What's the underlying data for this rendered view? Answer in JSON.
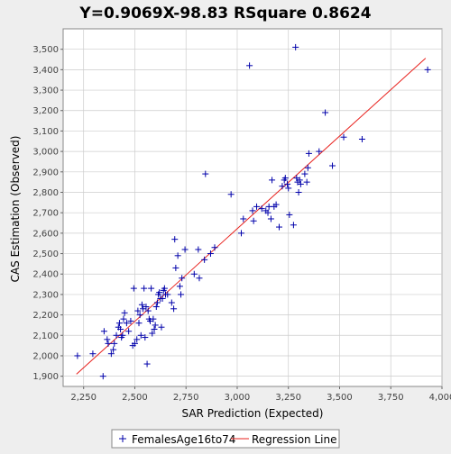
{
  "chart_data": {
    "type": "scatter",
    "title": "Y=0.9069X-98.83    RSquare 0.8624",
    "xlabel": "SAR Prediction (Expected)",
    "ylabel": "CAS Estimation (Observed)",
    "xlim": [
      2150,
      4000
    ],
    "ylim": [
      1850,
      3600
    ],
    "xticks": [
      2250,
      2500,
      2750,
      3000,
      3250,
      3500,
      3750,
      4000
    ],
    "yticks": [
      1900,
      2000,
      2100,
      2200,
      2300,
      2400,
      2500,
      2600,
      2700,
      2800,
      2900,
      3000,
      3100,
      3200,
      3300,
      3400,
      3500
    ],
    "grid": true,
    "legend_position": "bottom",
    "colors": {
      "points": "#0000aa",
      "regression": "#e8201c"
    },
    "series": [
      {
        "name": "FemalesAge16to74",
        "marker": "plus",
        "points": [
          [
            2220,
            2000
          ],
          [
            2295,
            2010
          ],
          [
            2345,
            1900
          ],
          [
            2350,
            2120
          ],
          [
            2365,
            2080
          ],
          [
            2370,
            2060
          ],
          [
            2385,
            2010
          ],
          [
            2395,
            2030
          ],
          [
            2400,
            2060
          ],
          [
            2410,
            2100
          ],
          [
            2420,
            2140
          ],
          [
            2425,
            2160
          ],
          [
            2430,
            2130
          ],
          [
            2435,
            2090
          ],
          [
            2440,
            2100
          ],
          [
            2445,
            2180
          ],
          [
            2450,
            2210
          ],
          [
            2460,
            2160
          ],
          [
            2470,
            2120
          ],
          [
            2480,
            2170
          ],
          [
            2490,
            2050
          ],
          [
            2495,
            2330
          ],
          [
            2500,
            2060
          ],
          [
            2510,
            2080
          ],
          [
            2515,
            2220
          ],
          [
            2520,
            2160
          ],
          [
            2525,
            2200
          ],
          [
            2530,
            2100
          ],
          [
            2535,
            2250
          ],
          [
            2540,
            2230
          ],
          [
            2545,
            2330
          ],
          [
            2550,
            2090
          ],
          [
            2555,
            2240
          ],
          [
            2560,
            1960
          ],
          [
            2565,
            2220
          ],
          [
            2570,
            2180
          ],
          [
            2575,
            2170
          ],
          [
            2580,
            2330
          ],
          [
            2585,
            2110
          ],
          [
            2590,
            2180
          ],
          [
            2595,
            2130
          ],
          [
            2600,
            2150
          ],
          [
            2605,
            2240
          ],
          [
            2610,
            2260
          ],
          [
            2615,
            2300
          ],
          [
            2620,
            2310
          ],
          [
            2625,
            2280
          ],
          [
            2630,
            2140
          ],
          [
            2635,
            2280
          ],
          [
            2640,
            2320
          ],
          [
            2645,
            2330
          ],
          [
            2650,
            2300
          ],
          [
            2660,
            2300
          ],
          [
            2680,
            2260
          ],
          [
            2690,
            2230
          ],
          [
            2695,
            2570
          ],
          [
            2700,
            2430
          ],
          [
            2710,
            2490
          ],
          [
            2720,
            2340
          ],
          [
            2725,
            2300
          ],
          [
            2730,
            2380
          ],
          [
            2745,
            2520
          ],
          [
            2790,
            2400
          ],
          [
            2810,
            2520
          ],
          [
            2815,
            2380
          ],
          [
            2840,
            2470
          ],
          [
            2845,
            2890
          ],
          [
            2870,
            2500
          ],
          [
            2890,
            2530
          ],
          [
            2970,
            2790
          ],
          [
            3020,
            2600
          ],
          [
            3030,
            2670
          ],
          [
            3060,
            3420
          ],
          [
            3075,
            2710
          ],
          [
            3080,
            2660
          ],
          [
            3095,
            2730
          ],
          [
            3120,
            2720
          ],
          [
            3140,
            2710
          ],
          [
            3150,
            2700
          ],
          [
            3155,
            2730
          ],
          [
            3165,
            2670
          ],
          [
            3170,
            2860
          ],
          [
            3180,
            2730
          ],
          [
            3190,
            2740
          ],
          [
            3205,
            2630
          ],
          [
            3220,
            2830
          ],
          [
            3230,
            2860
          ],
          [
            3235,
            2870
          ],
          [
            3245,
            2840
          ],
          [
            3250,
            2820
          ],
          [
            3255,
            2690
          ],
          [
            3275,
            2640
          ],
          [
            3285,
            3510
          ],
          [
            3290,
            2870
          ],
          [
            3295,
            2850
          ],
          [
            3300,
            2800
          ],
          [
            3305,
            2860
          ],
          [
            3310,
            2840
          ],
          [
            3330,
            2890
          ],
          [
            3340,
            2850
          ],
          [
            3345,
            2920
          ],
          [
            3350,
            2990
          ],
          [
            3400,
            3000
          ],
          [
            3430,
            3190
          ],
          [
            3465,
            2930
          ],
          [
            3520,
            3070
          ],
          [
            3610,
            3060
          ],
          [
            3930,
            3400
          ]
        ]
      }
    ],
    "regression": {
      "name": "Regression Line",
      "slope": 0.9069,
      "intercept": -98.83,
      "x_range": [
        2215,
        3920
      ]
    }
  }
}
